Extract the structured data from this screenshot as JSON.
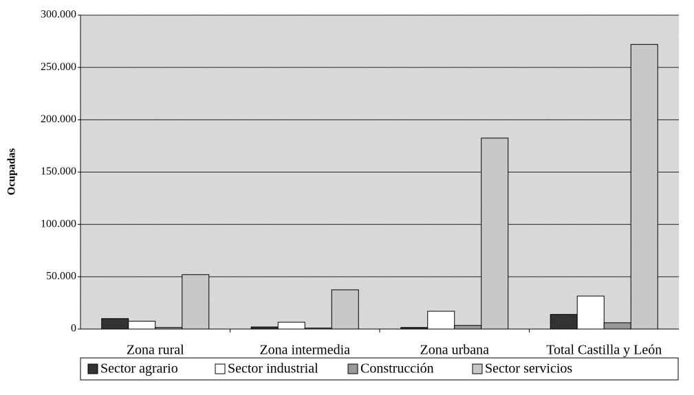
{
  "chart_data": {
    "type": "bar",
    "y_label": "Ocupadas",
    "categories": [
      "Zona rural",
      "Zona intermedia",
      "Zona urbana",
      "Total Castilla y León"
    ],
    "series": [
      {
        "name": "Sector agrario",
        "color": "#333333",
        "values": [
          10000,
          2000,
          1500,
          14000
        ]
      },
      {
        "name": "Sector industrial",
        "color": "#ffffff",
        "values": [
          7500,
          6500,
          17000,
          31500
        ]
      },
      {
        "name": "Construcción",
        "color": "#999999",
        "values": [
          1500,
          1000,
          3500,
          6000
        ]
      },
      {
        "name": "Sector servicios",
        "color": "#c8c8c8",
        "values": [
          52000,
          37500,
          182500,
          272000
        ]
      }
    ],
    "ylim": [
      0,
      300000
    ],
    "yticks": [
      0,
      {
        "value": 50000,
        "label": "50.000"
      },
      {
        "value": 100000,
        "label": "100.000"
      },
      {
        "value": 150000,
        "label": "150.000"
      },
      {
        "value": 200000,
        "label": "200.000"
      },
      {
        "value": 250000,
        "label": "250.000"
      },
      {
        "value": 300000,
        "label": "300.000"
      }
    ],
    "grid": true,
    "legend": "bottom"
  }
}
